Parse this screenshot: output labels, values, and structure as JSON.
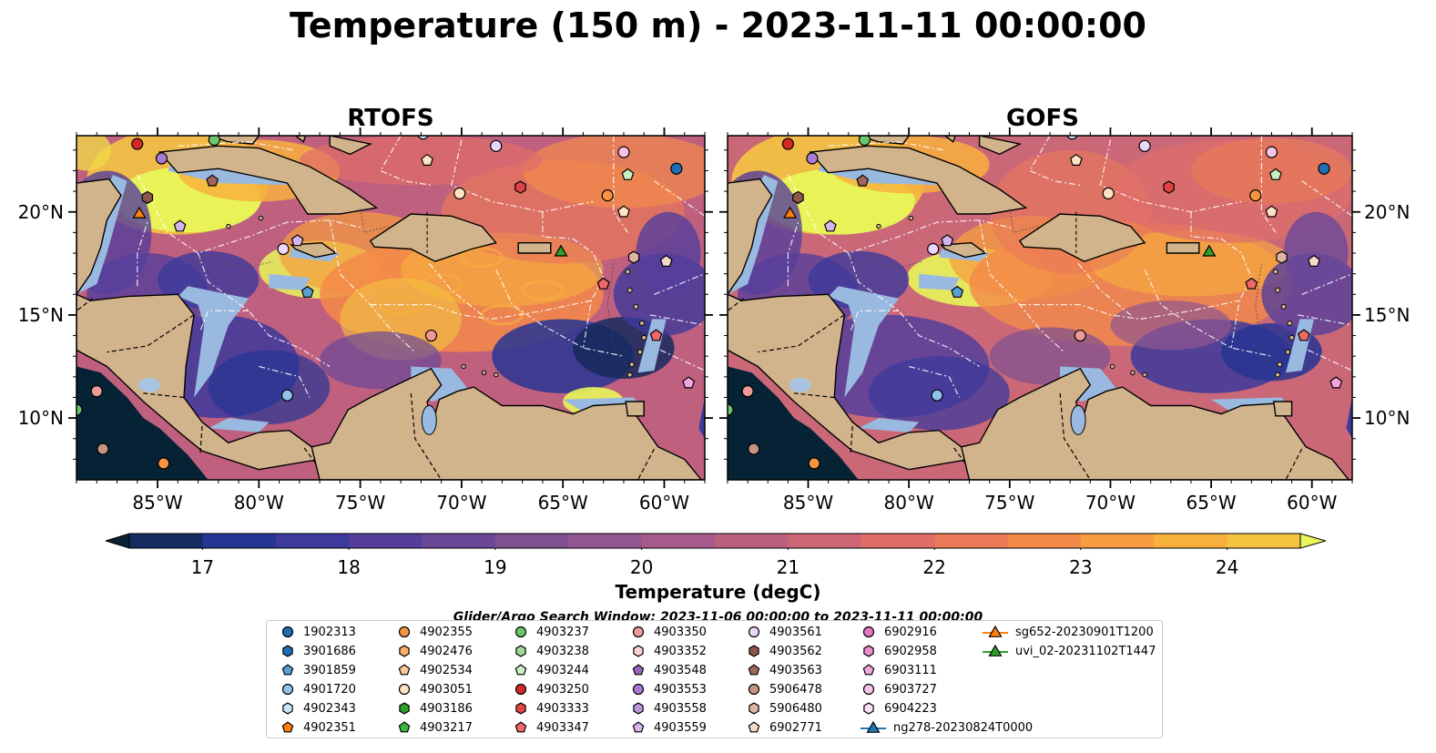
{
  "title": "Temperature (150 m) - 2023-11-11 00:00:00",
  "panels": [
    {
      "title": "RTOFS",
      "variant": "rtofs"
    },
    {
      "title": "GOFS",
      "variant": "gofs"
    }
  ],
  "map": {
    "lon_range": [
      -89,
      -58
    ],
    "lat_range": [
      7,
      23.7
    ],
    "lon_ticks": [
      "85°W",
      "80°W",
      "75°W",
      "70°W",
      "65°W",
      "60°W"
    ],
    "lon_tick_values": [
      -85,
      -80,
      -75,
      -70,
      -65,
      -60
    ],
    "lat_ticks": [
      "20°N",
      "15°N",
      "10°N"
    ],
    "lat_tick_values": [
      20,
      15,
      10
    ],
    "colors": {
      "land": "#d2b48c",
      "shallow": "#99b9e0",
      "deep": "#062235"
    }
  },
  "colorbar": {
    "label": "Temperature (degC)",
    "ticks": [
      "17",
      "18",
      "19",
      "20",
      "21",
      "22",
      "23",
      "24"
    ],
    "tick_values": [
      17,
      18,
      19,
      20,
      21,
      22,
      23,
      24
    ],
    "range": [
      16.5,
      24.5
    ],
    "colors": [
      "#0a2234",
      "#152a5e",
      "#273593",
      "#3d3a9b",
      "#553e9b",
      "#6a4897",
      "#7e5090",
      "#925790",
      "#a65a8b",
      "#bb5f80",
      "#cc6575",
      "#df6e68",
      "#ea7a58",
      "#f38a48",
      "#f79d3f",
      "#f8b03d",
      "#f4c441",
      "#f0d84a"
    ]
  },
  "search_window": "Glider/Argo Search Window: 2023-11-06 00:00:00 to 2023-11-11 00:00:00",
  "legend": [
    {
      "label": "1902313",
      "marker": "circle",
      "color": "#1f6fb4"
    },
    {
      "label": "3901686",
      "marker": "hexagon",
      "color": "#1f6fb4"
    },
    {
      "label": "3901859",
      "marker": "pentagon",
      "color": "#5a9fd4"
    },
    {
      "label": "4901720",
      "marker": "circle",
      "color": "#8fc3ea"
    },
    {
      "label": "4902343",
      "marker": "hexagon",
      "color": "#c9e5f7"
    },
    {
      "label": "4902351",
      "marker": "pentagon",
      "color": "#ff7f0e"
    },
    {
      "label": "4902355",
      "marker": "circle",
      "color": "#f89440"
    },
    {
      "label": "4902476",
      "marker": "hexagon",
      "color": "#fbae6b"
    },
    {
      "label": "4902534",
      "marker": "pentagon",
      "color": "#fdca97"
    },
    {
      "label": "4903051",
      "marker": "circle",
      "color": "#fde2c4"
    },
    {
      "label": "4903186",
      "marker": "hexagon",
      "color": "#2ca02c"
    },
    {
      "label": "4903217",
      "marker": "pentagon",
      "color": "#3fb83f"
    },
    {
      "label": "4903237",
      "marker": "circle",
      "color": "#6cc76c"
    },
    {
      "label": "4903238",
      "marker": "hexagon",
      "color": "#9ddc96"
    },
    {
      "label": "4903244",
      "marker": "pentagon",
      "color": "#c8f0c0"
    },
    {
      "label": "4903250",
      "marker": "circle",
      "color": "#d62728"
    },
    {
      "label": "4903333",
      "marker": "hexagon",
      "color": "#e04344"
    },
    {
      "label": "4903347",
      "marker": "pentagon",
      "color": "#f06767"
    },
    {
      "label": "4903350",
      "marker": "circle",
      "color": "#f09a98"
    },
    {
      "label": "4903352",
      "marker": "hexagon",
      "color": "#fbd2d0"
    },
    {
      "label": "4903548",
      "marker": "pentagon",
      "color": "#9467bd"
    },
    {
      "label": "4903553",
      "marker": "circle",
      "color": "#a97ad4"
    },
    {
      "label": "4903558",
      "marker": "hexagon",
      "color": "#b996e0"
    },
    {
      "label": "4903559",
      "marker": "pentagon",
      "color": "#d3b6ee"
    },
    {
      "label": "4903561",
      "marker": "circle",
      "color": "#ead7fb"
    },
    {
      "label": "4903562",
      "marker": "hexagon",
      "color": "#8c564b"
    },
    {
      "label": "4903563",
      "marker": "pentagon",
      "color": "#a0685c"
    },
    {
      "label": "5906478",
      "marker": "circle",
      "color": "#c49383"
    },
    {
      "label": "5906480",
      "marker": "hexagon",
      "color": "#e0b3a4"
    },
    {
      "label": "6902771",
      "marker": "pentagon",
      "color": "#f6d7ca"
    },
    {
      "label": "6902916",
      "marker": "circle",
      "color": "#e377c2"
    },
    {
      "label": "6902958",
      "marker": "hexagon",
      "color": "#ec8dd0"
    },
    {
      "label": "6903111",
      "marker": "pentagon",
      "color": "#f3a6dd"
    },
    {
      "label": "6903727",
      "marker": "circle",
      "color": "#f8c2e8"
    },
    {
      "label": "6904223",
      "marker": "hexagon",
      "color": "#fde0f4"
    },
    {
      "label": "ng278-20230824T0000",
      "marker": "triangle-line",
      "color": "#1f77b4"
    },
    {
      "label": "sg652-20230901T1200",
      "marker": "triangle-line",
      "color": "#ff7f0e"
    },
    {
      "label": "uvi_02-20231102T1447",
      "marker": "triangle-line",
      "color": "#2ca02c"
    }
  ],
  "map_markers": [
    {
      "lon": -86.0,
      "lat": 23.3,
      "marker": "circle",
      "color": "#d62728"
    },
    {
      "lon": -82.2,
      "lat": 23.5,
      "marker": "circle",
      "color": "#6cc76c"
    },
    {
      "lon": -71.9,
      "lat": 23.8,
      "marker": "circle",
      "color": "#c9e5f7"
    },
    {
      "lon": -68.3,
      "lat": 23.2,
      "marker": "circle",
      "color": "#ead7fb"
    },
    {
      "lon": -62.0,
      "lat": 22.9,
      "marker": "circle",
      "color": "#f8c2e8"
    },
    {
      "lon": -59.4,
      "lat": 22.1,
      "marker": "circle",
      "color": "#1f6fb4"
    },
    {
      "lon": -84.8,
      "lat": 22.6,
      "marker": "circle",
      "color": "#a97ad4"
    },
    {
      "lon": -82.3,
      "lat": 21.5,
      "marker": "pentagon",
      "color": "#a0685c"
    },
    {
      "lon": -85.5,
      "lat": 20.7,
      "marker": "hexagon",
      "color": "#8c564b"
    },
    {
      "lon": -85.9,
      "lat": 19.95,
      "marker": "triangle",
      "color": "#ff7f0e"
    },
    {
      "lon": -83.9,
      "lat": 19.3,
      "marker": "pentagon",
      "color": "#d3b6ee"
    },
    {
      "lon": -71.7,
      "lat": 22.5,
      "marker": "pentagon",
      "color": "#fde2c4"
    },
    {
      "lon": -70.1,
      "lat": 20.9,
      "marker": "circle",
      "color": "#fde2c4"
    },
    {
      "lon": -67.1,
      "lat": 21.2,
      "marker": "hexagon",
      "color": "#e04344"
    },
    {
      "lon": -62.8,
      "lat": 20.8,
      "marker": "circle",
      "color": "#f89440"
    },
    {
      "lon": -61.8,
      "lat": 21.8,
      "marker": "pentagon",
      "color": "#c8f0c0"
    },
    {
      "lon": -62.0,
      "lat": 20.0,
      "marker": "pentagon",
      "color": "#fde2c4"
    },
    {
      "lon": -78.8,
      "lat": 18.2,
      "marker": "circle",
      "color": "#ead7fb"
    },
    {
      "lon": -78.1,
      "lat": 18.6,
      "marker": "pentagon",
      "color": "#d3b6ee"
    },
    {
      "lon": -77.6,
      "lat": 16.1,
      "marker": "pentagon",
      "color": "#5a9fd4"
    },
    {
      "lon": -65.1,
      "lat": 18.1,
      "marker": "triangle",
      "color": "#2ca02c"
    },
    {
      "lon": -61.5,
      "lat": 17.8,
      "marker": "hexagon",
      "color": "#e0b3a4"
    },
    {
      "lon": -59.9,
      "lat": 17.6,
      "marker": "pentagon",
      "color": "#f6d7ca"
    },
    {
      "lon": -63.0,
      "lat": 16.5,
      "marker": "pentagon",
      "color": "#f06767"
    },
    {
      "lon": -71.5,
      "lat": 14.0,
      "marker": "circle",
      "color": "#f09a98"
    },
    {
      "lon": -60.4,
      "lat": 14.0,
      "marker": "pentagon",
      "color": "#f06767"
    },
    {
      "lon": -58.8,
      "lat": 11.7,
      "marker": "pentagon",
      "color": "#f3a6dd"
    },
    {
      "lon": -78.6,
      "lat": 11.1,
      "marker": "circle",
      "color": "#8fc3ea"
    },
    {
      "lon": -88.0,
      "lat": 11.3,
      "marker": "circle",
      "color": "#f09a98"
    },
    {
      "lon": -87.7,
      "lat": 8.5,
      "marker": "circle",
      "color": "#c49383"
    },
    {
      "lon": -84.7,
      "lat": 7.8,
      "marker": "circle",
      "color": "#f89440"
    },
    {
      "lon": -89.0,
      "lat": 10.4,
      "marker": "circle",
      "color": "#6cc76c"
    }
  ]
}
